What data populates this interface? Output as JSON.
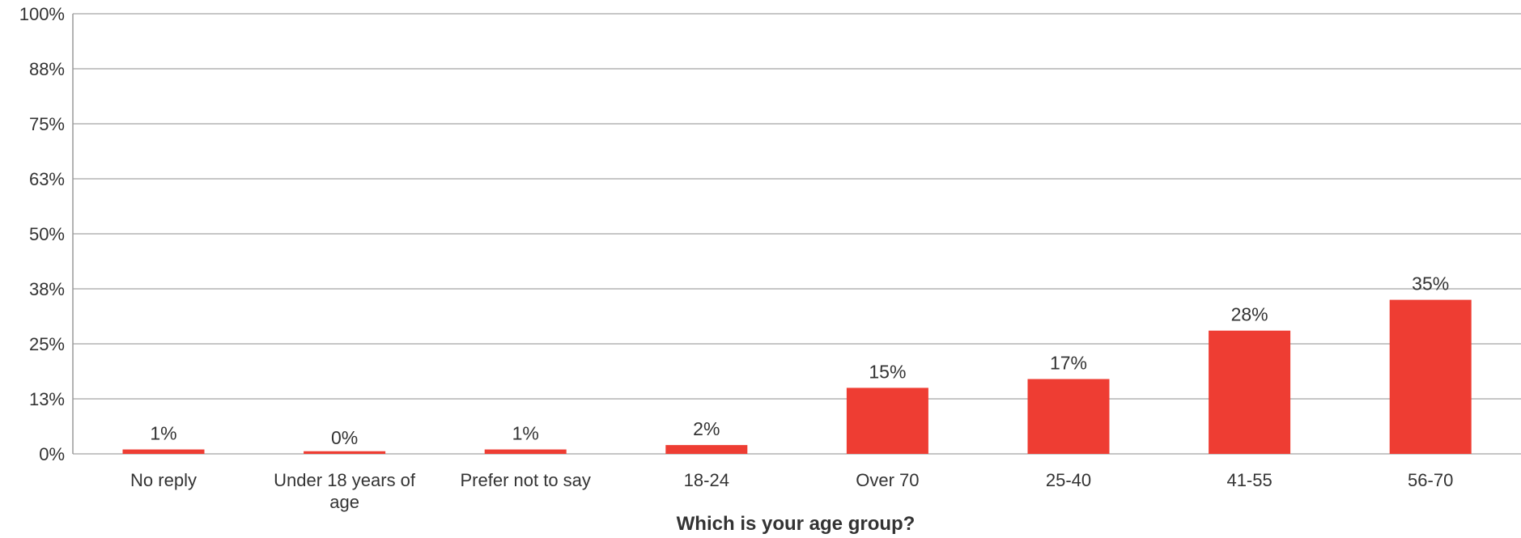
{
  "chart_data": {
    "type": "bar",
    "title": "",
    "xlabel": "Which is your age group?",
    "ylabel": "",
    "categories": [
      [
        "No reply"
      ],
      [
        "Under 18 years of",
        "age"
      ],
      [
        "Prefer not to say"
      ],
      [
        "18-24"
      ],
      [
        "Over 70"
      ],
      [
        "25-40"
      ],
      [
        "41-55"
      ],
      [
        "56-70"
      ]
    ],
    "values": [
      1,
      0,
      1,
      2,
      15,
      17,
      28,
      35
    ],
    "value_labels": [
      "1%",
      "0%",
      "1%",
      "2%",
      "15%",
      "17%",
      "28%",
      "35%"
    ],
    "ylim": [
      0,
      100
    ],
    "yticks": [
      {
        "value": 0,
        "label": "0%"
      },
      {
        "value": 12.5,
        "label": "13%"
      },
      {
        "value": 25,
        "label": "25%"
      },
      {
        "value": 37.5,
        "label": "38%"
      },
      {
        "value": 50,
        "label": "50%"
      },
      {
        "value": 62.5,
        "label": "63%"
      },
      {
        "value": 75,
        "label": "75%"
      },
      {
        "value": 87.5,
        "label": "88%"
      },
      {
        "value": 100,
        "label": "100%"
      }
    ],
    "grid": true,
    "legend": "none",
    "colors": {
      "bar": "#ee3d33",
      "grid": "#b3b3b3",
      "axis": "#999999",
      "text": "#333333"
    }
  }
}
